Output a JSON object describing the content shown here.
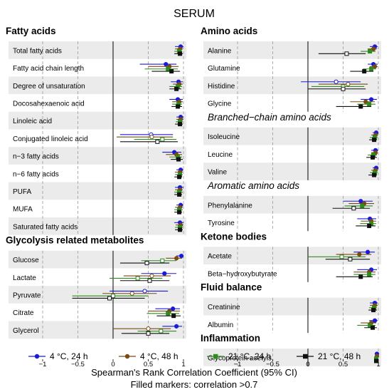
{
  "title": "SERUM",
  "xlabel": "Spearman's Rank Correlation Coefficient (95% CI)",
  "note": "Filled markers: correlation >0.7",
  "legend": [
    {
      "label": "4 °C, 24 h",
      "color": "#1a1adb",
      "marker": "circle"
    },
    {
      "label": "4 °C, 48 h",
      "color": "#7a4a12",
      "marker": "circle"
    },
    {
      "label": "21 °C, 24 h",
      "color": "#2e8b1e",
      "marker": "square"
    },
    {
      "label": "21 °C, 48 h",
      "color": "#111111",
      "marker": "square"
    }
  ],
  "colors": {
    "blue": "#1a1adb",
    "red": "#e02020",
    "green": "#2e8b1e",
    "black": "#111111",
    "band": "#ebebeb"
  },
  "chart_data": [
    {
      "type": "scatter",
      "panel": "left",
      "xlim": [
        -1,
        1
      ],
      "xticks": [
        -1,
        -0.5,
        0,
        0.5,
        1
      ],
      "xtick_labels": [
        "−1",
        "−0.5",
        "0",
        "0.5",
        "1"
      ],
      "sections": [
        {
          "title": "Fatty acids",
          "italic": false,
          "rows": [
            {
              "label": "Total fatty acids",
              "points": [
                [
                  0.96,
                  0.88,
                  1.0
                ],
                [
                  0.95,
                  0.88,
                  0.99
                ],
                [
                  0.94,
                  0.87,
                  0.98
                ],
                [
                  0.95,
                  0.87,
                  0.99
                ]
              ]
            },
            {
              "label": "Fatty acid chain length",
              "points": [
                [
                  0.75,
                  0.38,
                  0.9
                ],
                [
                  0.8,
                  0.5,
                  0.93
                ],
                [
                  0.78,
                  0.45,
                  0.92
                ],
                [
                  0.83,
                  0.55,
                  0.95
                ]
              ]
            },
            {
              "label": "Degree of unsaturation",
              "points": [
                [
                  0.93,
                  0.82,
                  0.99
                ],
                [
                  0.94,
                  0.85,
                  0.99
                ],
                [
                  0.92,
                  0.8,
                  0.98
                ],
                [
                  0.9,
                  0.8,
                  0.97
                ]
              ]
            },
            {
              "label": "Docosahexaenoic acid",
              "points": [
                [
                  0.92,
                  0.8,
                  0.99
                ],
                [
                  0.94,
                  0.84,
                  0.99
                ],
                [
                  0.93,
                  0.84,
                  0.98
                ],
                [
                  0.92,
                  0.83,
                  0.98
                ]
              ]
            },
            {
              "label": "Linoleic acid",
              "points": [
                [
                  0.96,
                  0.9,
                  1.0
                ],
                [
                  0.96,
                  0.9,
                  1.0
                ],
                [
                  0.95,
                  0.89,
                  0.99
                ],
                [
                  0.95,
                  0.88,
                  0.99
                ]
              ]
            },
            {
              "label": "Conjugated linoleic acid",
              "points": [
                [
                  0.54,
                  0.1,
                  0.85
                ],
                [
                  0.55,
                  0.05,
                  0.85
                ],
                [
                  0.7,
                  0.3,
                  0.9
                ],
                [
                  0.63,
                  0.1,
                  0.92
                ]
              ]
            },
            {
              "label": "n−3 fatty acids",
              "points": [
                [
                  0.87,
                  0.7,
                  0.97
                ],
                [
                  0.9,
                  0.75,
                  0.98
                ],
                [
                  0.92,
                  0.8,
                  0.98
                ],
                [
                  0.93,
                  0.82,
                  0.99
                ]
              ]
            },
            {
              "label": "n−6 fatty acids",
              "points": [
                [
                  0.96,
                  0.9,
                  1.0
                ],
                [
                  0.95,
                  0.88,
                  0.99
                ],
                [
                  0.95,
                  0.88,
                  0.99
                ],
                [
                  0.94,
                  0.87,
                  0.98
                ]
              ]
            },
            {
              "label": "PUFA",
              "points": [
                [
                  0.95,
                  0.88,
                  1.0
                ],
                [
                  0.95,
                  0.88,
                  0.99
                ],
                [
                  0.94,
                  0.87,
                  0.99
                ],
                [
                  0.94,
                  0.87,
                  0.98
                ]
              ]
            },
            {
              "label": "MUFA",
              "points": [
                [
                  0.96,
                  0.9,
                  1.0
                ],
                [
                  0.95,
                  0.88,
                  0.99
                ],
                [
                  0.94,
                  0.87,
                  0.99
                ],
                [
                  0.94,
                  0.87,
                  0.98
                ]
              ]
            },
            {
              "label": "Saturated fatty acids",
              "points": [
                [
                  0.95,
                  0.87,
                  1.0
                ],
                [
                  0.96,
                  0.89,
                  1.0
                ],
                [
                  0.95,
                  0.88,
                  0.99
                ],
                [
                  0.95,
                  0.88,
                  0.99
                ]
              ]
            }
          ]
        },
        {
          "title": "Glycolysis related metabolites",
          "italic": false,
          "rows": [
            {
              "label": "Glucose",
              "points": [
                [
                  0.97,
                  0.9,
                  1.0
                ],
                [
                  0.9,
                  0.75,
                  0.98
                ],
                [
                  0.7,
                  0.4,
                  0.9
                ],
                [
                  0.48,
                  0.1,
                  0.8
                ]
              ]
            },
            {
              "label": "Lactate",
              "points": [
                [
                  0.73,
                  0.4,
                  0.9
                ],
                [
                  0.55,
                  0.15,
                  0.82
                ],
                [
                  0.35,
                  -0.05,
                  0.7
                ],
                [
                  0.52,
                  0.1,
                  0.8
                ]
              ]
            },
            {
              "label": "Pyruvate",
              "points": [
                [
                  0.45,
                  -0.05,
                  0.78
                ],
                [
                  0.27,
                  -0.15,
                  0.62
                ],
                [
                  0.0,
                  -0.58,
                  0.5
                ],
                [
                  -0.05,
                  -0.58,
                  0.45
                ]
              ]
            },
            {
              "label": "Citrate",
              "points": [
                [
                  0.85,
                  0.6,
                  0.95
                ],
                [
                  0.8,
                  0.5,
                  0.95
                ],
                [
                  0.78,
                  0.48,
                  0.94
                ],
                [
                  0.86,
                  0.62,
                  0.96
                ]
              ]
            },
            {
              "label": "Glycerol",
              "points": [
                [
                  0.9,
                  0.7,
                  0.98
                ],
                [
                  0.5,
                  0.0,
                  0.82
                ],
                [
                  0.68,
                  0.35,
                  0.9
                ],
                [
                  0.5,
                  0.12,
                  0.8
                ]
              ]
            }
          ]
        }
      ]
    },
    {
      "type": "scatter",
      "panel": "right",
      "xlim": [
        -1,
        1
      ],
      "xticks": [
        -1,
        -0.5,
        0,
        0.5,
        1
      ],
      "xtick_labels": [
        "−1",
        "−0.5",
        "0",
        "0.5",
        "1"
      ],
      "sections": [
        {
          "title": "Amino acids",
          "italic": false,
          "rows": [
            {
              "label": "Alanine",
              "points": [
                [
                  0.95,
                  0.88,
                  0.99
                ],
                [
                  0.93,
                  0.85,
                  0.98
                ],
                [
                  0.88,
                  0.75,
                  0.96
                ],
                [
                  0.55,
                  0.15,
                  0.82
                ]
              ]
            },
            {
              "label": "Glutamine",
              "points": [
                [
                  0.93,
                  0.85,
                  0.99
                ],
                [
                  0.95,
                  0.88,
                  0.99
                ],
                [
                  0.9,
                  0.78,
                  0.97
                ],
                [
                  0.8,
                  0.6,
                  0.93
                ]
              ]
            },
            {
              "label": "Histidine",
              "points": [
                [
                  0.4,
                  -0.1,
                  0.75
                ],
                [
                  0.57,
                  0.15,
                  0.85
                ],
                [
                  0.5,
                  0.05,
                  0.8
                ],
                [
                  0.5,
                  0.0,
                  0.82
                ]
              ]
            },
            {
              "label": "Glycine",
              "points": [
                [
                  0.9,
                  0.75,
                  0.98
                ],
                [
                  0.82,
                  0.6,
                  0.95
                ],
                [
                  0.87,
                  0.7,
                  0.96
                ],
                [
                  0.75,
                  0.4,
                  0.9
                ]
              ]
            }
          ]
        },
        {
          "title": "Branched−chain amino acids",
          "italic": true,
          "rows": [
            {
              "label": "Isoleucine",
              "points": [
                [
                  0.97,
                  0.92,
                  1.0
                ],
                [
                  0.96,
                  0.9,
                  0.99
                ],
                [
                  0.95,
                  0.88,
                  0.99
                ],
                [
                  0.94,
                  0.87,
                  0.98
                ]
              ]
            },
            {
              "label": "Leucine",
              "points": [
                [
                  0.96,
                  0.9,
                  1.0
                ],
                [
                  0.96,
                  0.9,
                  0.99
                ],
                [
                  0.93,
                  0.85,
                  0.98
                ],
                [
                  0.92,
                  0.83,
                  0.98
                ]
              ]
            },
            {
              "label": "Valine",
              "points": [
                [
                  0.97,
                  0.92,
                  1.0
                ],
                [
                  0.96,
                  0.9,
                  0.99
                ],
                [
                  0.95,
                  0.88,
                  0.99
                ],
                [
                  0.94,
                  0.86,
                  0.98
                ]
              ]
            }
          ]
        },
        {
          "title": "Aromatic amino acids",
          "italic": true,
          "rows": [
            {
              "label": "Phenylalanine",
              "points": [
                [
                  0.75,
                  0.5,
                  0.92
                ],
                [
                  0.8,
                  0.58,
                  0.94
                ],
                [
                  0.77,
                  0.52,
                  0.92
                ],
                [
                  0.65,
                  0.35,
                  0.88
                ]
              ]
            },
            {
              "label": "Tyrosine",
              "points": [
                [
                  0.88,
                  0.7,
                  0.97
                ],
                [
                  0.9,
                  0.75,
                  0.97
                ],
                [
                  0.9,
                  0.74,
                  0.97
                ],
                [
                  0.87,
                  0.68,
                  0.96
                ]
              ]
            }
          ]
        },
        {
          "title": "Ketone bodies",
          "italic": false,
          "rows": [
            {
              "label": "Acetate",
              "points": [
                [
                  0.85,
                  0.65,
                  0.95
                ],
                [
                  0.73,
                  0.4,
                  0.9
                ],
                [
                  0.48,
                  0.0,
                  0.82
                ],
                [
                  0.6,
                  0.25,
                  0.88
                ]
              ]
            },
            {
              "label": "Beta−hydroxybutyrate",
              "points": [
                [
                  0.9,
                  0.7,
                  0.98
                ],
                [
                  0.87,
                  0.65,
                  0.96
                ],
                [
                  0.87,
                  0.65,
                  0.96
                ],
                [
                  0.75,
                  0.4,
                  0.92
                ]
              ]
            }
          ]
        },
        {
          "title": "Fluid balance",
          "italic": false,
          "rows": [
            {
              "label": "Creatinine",
              "points": [
                [
                  0.95,
                  0.88,
                  0.99
                ],
                [
                  0.95,
                  0.88,
                  0.99
                ],
                [
                  0.94,
                  0.87,
                  0.98
                ],
                [
                  0.93,
                  0.86,
                  0.98
                ]
              ]
            },
            {
              "label": "Albumin",
              "points": [
                [
                  0.95,
                  0.87,
                  0.99
                ],
                [
                  0.9,
                  0.75,
                  0.97
                ],
                [
                  0.88,
                  0.7,
                  0.96
                ],
                [
                  0.92,
                  0.8,
                  0.98
                ]
              ]
            }
          ]
        },
        {
          "title": "Inflammation",
          "italic": false,
          "rows": [
            {
              "label": "Glycoprotein acetyls",
              "points": [
                [
                  0.98,
                  0.95,
                  1.0
                ],
                [
                  0.98,
                  0.95,
                  1.0
                ],
                [
                  0.97,
                  0.94,
                  0.99
                ],
                [
                  0.97,
                  0.94,
                  0.99
                ]
              ]
            }
          ]
        }
      ]
    }
  ]
}
